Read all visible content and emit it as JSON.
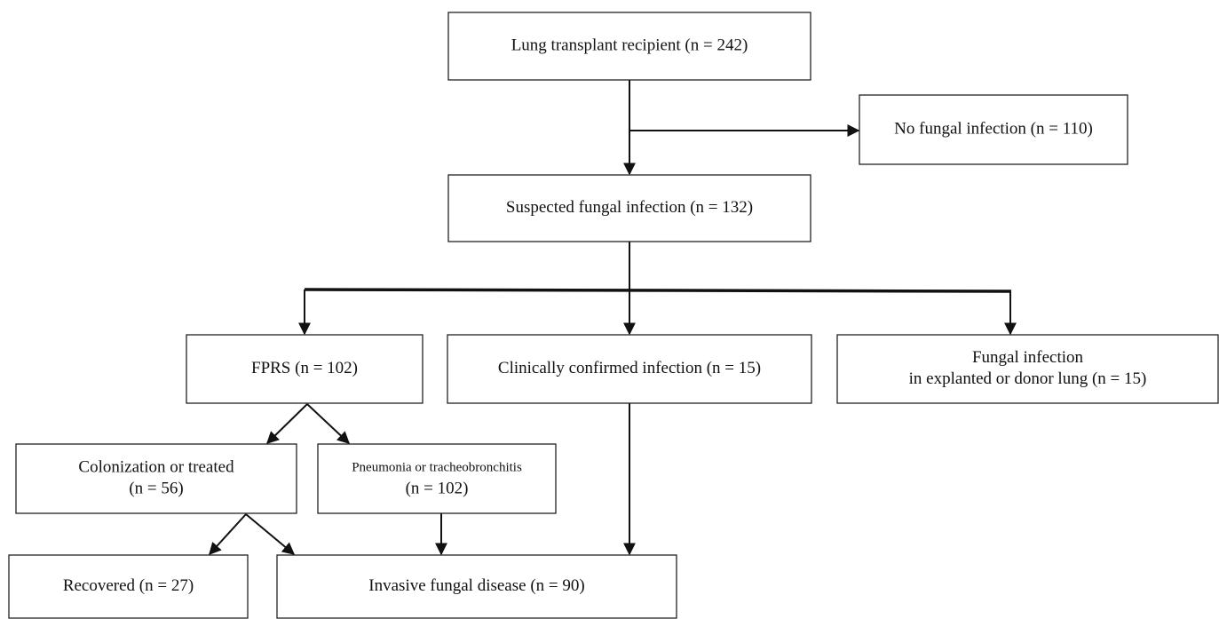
{
  "nodes": [
    {
      "lines": [
        "Lung transplant recipient (n = 242)"
      ]
    },
    {
      "lines": [
        "No fungal infection (n = 110)"
      ]
    },
    {
      "lines": [
        "Suspected fungal infection (n = 132)"
      ]
    },
    {
      "lines": [
        "FPRS (n = 102)"
      ]
    },
    {
      "lines": [
        "Clinically confirmed infection (n = 15)"
      ]
    },
    {
      "lines": [
        "Fungal infection",
        "in explanted or donor lung (n = 15)"
      ]
    },
    {
      "lines": [
        "Colonization or treated",
        "(n = 56)"
      ]
    },
    {
      "lines": [
        "Pneumonia or tracheobronchitis",
        "(n = 102)"
      ]
    },
    {
      "lines": [
        "Recovered (n = 27)"
      ]
    },
    {
      "lines": [
        "Invasive fungal disease (n = 90)"
      ]
    }
  ]
}
